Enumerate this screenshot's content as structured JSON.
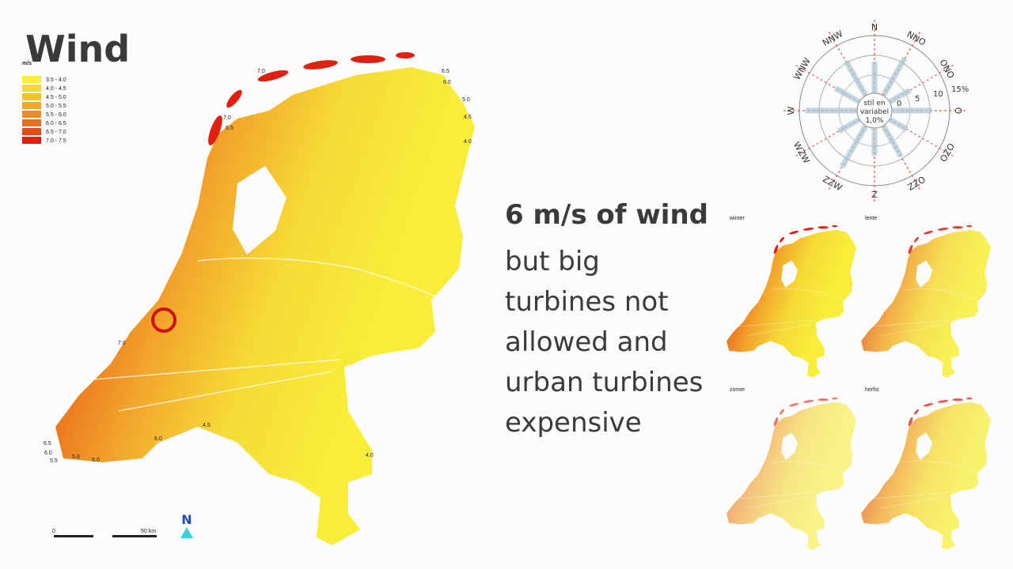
{
  "title": "Wind",
  "legend": {
    "unit": "m/s",
    "items": [
      {
        "label": "3.5 - 4.0",
        "color": "#f8ee3a"
      },
      {
        "label": "4.0 - 4.5",
        "color": "#f6d936"
      },
      {
        "label": "4.5 - 5.0",
        "color": "#f4c131"
      },
      {
        "label": "5.0 - 5.5",
        "color": "#f2a52b"
      },
      {
        "label": "5.5 - 6.0",
        "color": "#ee8a25"
      },
      {
        "label": "6.0 - 6.5",
        "color": "#ea6c1e"
      },
      {
        "label": "6.5 - 7.0",
        "color": "#e54a17"
      },
      {
        "label": "7.0 - 7.5",
        "color": "#df1f10"
      }
    ]
  },
  "map_labels": [
    "7.0",
    "6.5",
    "6.0",
    "5.0",
    "4.5",
    "4.0",
    "7.0",
    "6.5",
    "7.0",
    "6.0",
    "4.5",
    "4.0",
    "6.5",
    "6.0",
    "5.5",
    "5.0",
    "5.0"
  ],
  "scale": {
    "start": "0",
    "end": "50 km"
  },
  "north": "N",
  "heading": "6 m/s of wind",
  "body": [
    "but big",
    "turbines not",
    "allowed and",
    "urban turbines",
    "expensive"
  ],
  "wind_rose": {
    "directions": [
      "N",
      "NNO",
      "ONO",
      "O",
      "OZO",
      "ZZO",
      "Z",
      "ZZW",
      "WZW",
      "W",
      "WNW",
      "NNW"
    ],
    "center": [
      "stil en",
      "variabel",
      "1,0%"
    ],
    "rings": [
      "0",
      "5",
      "10",
      "15%"
    ]
  },
  "seasons": [
    "winter",
    "lente",
    "zomer",
    "herfst"
  ]
}
